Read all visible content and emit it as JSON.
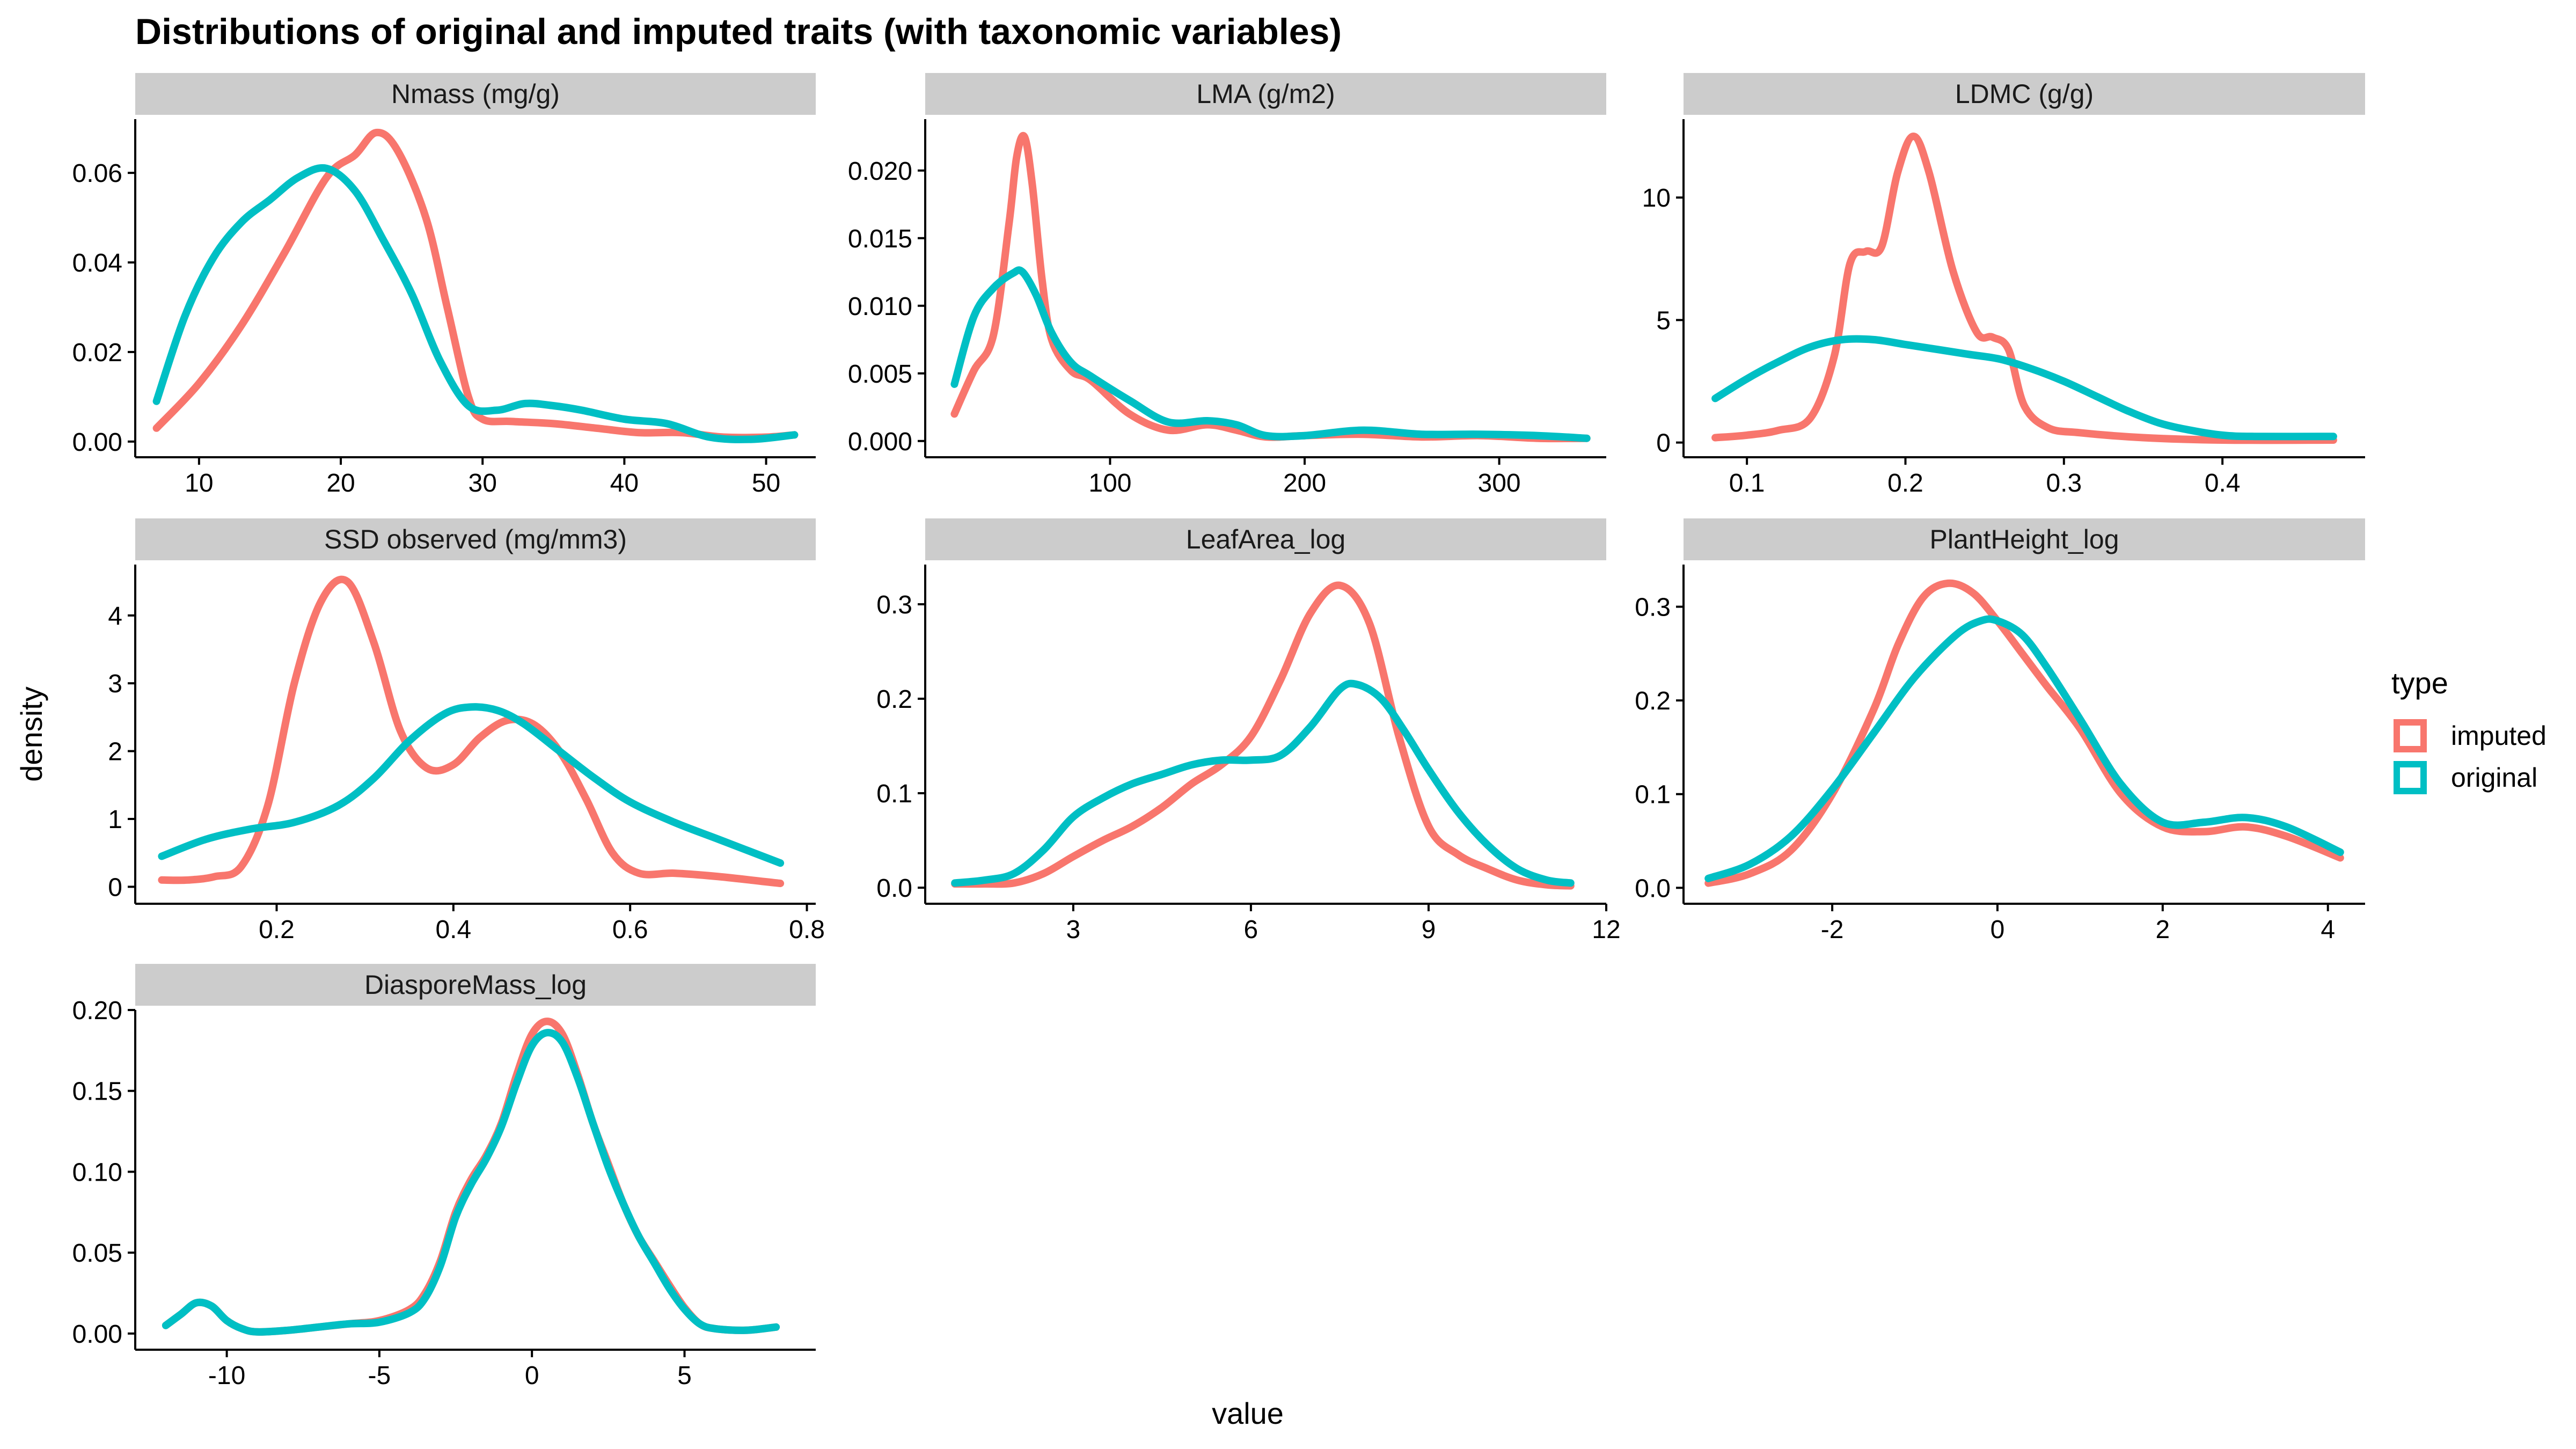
{
  "chart_data": {
    "type": "line",
    "title": "Distributions of original and imputed traits (with taxonomic variables)",
    "xlabel": "value",
    "ylabel": "density",
    "legend": {
      "title": "type",
      "placement": "right",
      "items": [
        {
          "name": "imputed",
          "color": "#F8766D"
        },
        {
          "name": "original",
          "color": "#00BFC4"
        }
      ]
    },
    "grid": false,
    "panels": [
      {
        "label": "Nmass (mg/g)",
        "xlim": [
          5.5,
          53.5
        ],
        "ylim": [
          -0.0035,
          0.072
        ],
        "xticks": [
          10,
          20,
          30,
          40,
          50
        ],
        "xtick_labels": [
          "10",
          "20",
          "30",
          "40",
          "50"
        ],
        "yticks": [
          0,
          0.02,
          0.04,
          0.06
        ],
        "ytick_labels": [
          "0.00",
          "0.02",
          "0.04",
          "0.06"
        ],
        "series": [
          {
            "name": "imputed",
            "x": [
              7,
              10,
              13,
              16,
              19,
              21,
              22.5,
              24,
              26,
              27.5,
              29,
              30,
              32,
              35,
              38,
              41,
              44,
              47,
              50,
              52
            ],
            "y": [
              0.003,
              0.013,
              0.026,
              0.042,
              0.059,
              0.064,
              0.069,
              0.065,
              0.05,
              0.03,
              0.01,
              0.005,
              0.0045,
              0.004,
              0.003,
              0.002,
              0.002,
              0.001,
              0.001,
              0.0015
            ]
          },
          {
            "name": "original",
            "x": [
              7,
              9,
              11,
              13,
              15,
              17,
              19,
              21,
              23,
              25,
              27,
              29,
              31,
              33,
              35,
              37,
              40,
              43,
              46,
              49,
              52
            ],
            "y": [
              0.009,
              0.028,
              0.041,
              0.049,
              0.054,
              0.059,
              0.061,
              0.056,
              0.045,
              0.033,
              0.018,
              0.008,
              0.007,
              0.0085,
              0.008,
              0.007,
              0.005,
              0.004,
              0.001,
              0.0005,
              0.0015
            ]
          }
        ]
      },
      {
        "label": "LMA (g/m2)",
        "xlim": [
          5,
          355
        ],
        "ylim": [
          -0.0012,
          0.0238
        ],
        "xticks": [
          100,
          200,
          300
        ],
        "xtick_labels": [
          "100",
          "200",
          "300"
        ],
        "yticks": [
          0,
          0.005,
          0.01,
          0.015,
          0.02
        ],
        "ytick_labels": [
          "0.000",
          "0.005",
          "0.010",
          "0.015",
          "0.020"
        ],
        "series": [
          {
            "name": "imputed",
            "x": [
              20,
              30,
              40,
              48,
              52,
              56,
              60,
              65,
              70,
              80,
              90,
              110,
              130,
              150,
              165,
              180,
              200,
              230,
              260,
              290,
              320,
              345
            ],
            "y": [
              0.002,
              0.0052,
              0.0078,
              0.016,
              0.021,
              0.0225,
              0.019,
              0.012,
              0.0075,
              0.0052,
              0.0045,
              0.002,
              0.0008,
              0.0012,
              0.0008,
              0.0003,
              0.0004,
              0.0005,
              0.0003,
              0.0004,
              0.0002,
              0.0002
            ]
          },
          {
            "name": "original",
            "x": [
              20,
              30,
              40,
              50,
              55,
              62,
              70,
              80,
              90,
              110,
              130,
              150,
              165,
              180,
              200,
              230,
              260,
              290,
              320,
              345
            ],
            "y": [
              0.0042,
              0.0092,
              0.0113,
              0.0124,
              0.0125,
              0.0108,
              0.008,
              0.0058,
              0.0048,
              0.003,
              0.0014,
              0.0015,
              0.0012,
              0.0004,
              0.0004,
              0.0008,
              0.0005,
              0.0005,
              0.0004,
              0.0002
            ]
          }
        ]
      },
      {
        "label": "LDMC (g/g)",
        "xlim": [
          0.06,
          0.49
        ],
        "ylim": [
          -0.6,
          13.2
        ],
        "xticks": [
          0.1,
          0.2,
          0.3,
          0.4
        ],
        "xtick_labels": [
          "0.1",
          "0.2",
          "0.3",
          "0.4"
        ],
        "yticks": [
          0,
          5,
          10
        ],
        "ytick_labels": [
          "0",
          "5",
          "10"
        ],
        "series": [
          {
            "name": "imputed",
            "x": [
              0.08,
              0.1,
              0.12,
              0.14,
              0.155,
              0.165,
              0.175,
              0.185,
              0.195,
              0.205,
              0.215,
              0.23,
              0.245,
              0.255,
              0.265,
              0.275,
              0.29,
              0.31,
              0.35,
              0.4,
              0.47
            ],
            "y": [
              0.2,
              0.3,
              0.5,
              1.0,
              3.5,
              7.3,
              7.8,
              8.0,
              11.0,
              12.5,
              11.0,
              7.0,
              4.5,
              4.3,
              3.8,
              1.5,
              0.6,
              0.4,
              0.2,
              0.1,
              0.1
            ]
          },
          {
            "name": "original",
            "x": [
              0.08,
              0.1,
              0.12,
              0.14,
              0.16,
              0.18,
              0.2,
              0.22,
              0.24,
              0.26,
              0.28,
              0.3,
              0.32,
              0.34,
              0.36,
              0.38,
              0.4,
              0.42,
              0.47
            ],
            "y": [
              1.8,
              2.6,
              3.3,
              3.9,
              4.2,
              4.2,
              4.0,
              3.8,
              3.6,
              3.4,
              3.0,
              2.5,
              1.9,
              1.3,
              0.8,
              0.5,
              0.3,
              0.25,
              0.25
            ]
          }
        ]
      },
      {
        "label": "SSD observed (mg/mm3)",
        "xlim": [
          0.04,
          0.81
        ],
        "ylim": [
          -0.25,
          4.75
        ],
        "xticks": [
          0.2,
          0.4,
          0.6,
          0.8
        ],
        "xtick_labels": [
          "0.2",
          "0.4",
          "0.6",
          "0.8"
        ],
        "yticks": [
          0,
          1,
          2,
          3,
          4
        ],
        "ytick_labels": [
          "0",
          "1",
          "2",
          "3",
          "4"
        ],
        "series": [
          {
            "name": "imputed",
            "x": [
              0.07,
              0.1,
              0.13,
              0.16,
              0.19,
              0.22,
              0.25,
              0.28,
              0.31,
              0.34,
              0.37,
              0.4,
              0.43,
              0.46,
              0.49,
              0.52,
              0.55,
              0.58,
              0.61,
              0.65,
              0.7,
              0.77
            ],
            "y": [
              0.1,
              0.1,
              0.15,
              0.3,
              1.2,
              3.0,
              4.2,
              4.5,
              3.6,
              2.3,
              1.75,
              1.8,
              2.2,
              2.45,
              2.4,
              2.0,
              1.3,
              0.5,
              0.2,
              0.2,
              0.15,
              0.05
            ]
          },
          {
            "name": "original",
            "x": [
              0.07,
              0.12,
              0.17,
              0.22,
              0.27,
              0.31,
              0.35,
              0.39,
              0.42,
              0.45,
              0.48,
              0.52,
              0.56,
              0.6,
              0.65,
              0.7,
              0.77
            ],
            "y": [
              0.45,
              0.7,
              0.85,
              0.95,
              1.2,
              1.6,
              2.15,
              2.55,
              2.65,
              2.6,
              2.4,
              2.0,
              1.6,
              1.25,
              0.95,
              0.7,
              0.35
            ]
          }
        ]
      },
      {
        "label": "LeafArea_log",
        "xlim": [
          0.5,
          12.0
        ],
        "ylim": [
          -0.017,
          0.342
        ],
        "xticks": [
          3,
          6,
          9,
          12
        ],
        "xtick_labels": [
          "3",
          "6",
          "9",
          "12"
        ],
        "yticks": [
          0,
          0.1,
          0.2,
          0.3
        ],
        "ytick_labels": [
          "0.0",
          "0.1",
          "0.2",
          "0.3"
        ],
        "series": [
          {
            "name": "imputed",
            "x": [
              1.0,
              1.5,
              2.0,
              2.5,
              3.0,
              3.5,
              4.0,
              4.5,
              5.0,
              5.5,
              6.0,
              6.5,
              7.0,
              7.5,
              8.0,
              8.5,
              9.0,
              9.5,
              10.0,
              10.5,
              11.0,
              11.4
            ],
            "y": [
              0.004,
              0.004,
              0.005,
              0.015,
              0.033,
              0.05,
              0.065,
              0.085,
              0.11,
              0.13,
              0.16,
              0.22,
              0.29,
              0.32,
              0.28,
              0.16,
              0.065,
              0.035,
              0.02,
              0.008,
              0.003,
              0.002
            ]
          },
          {
            "name": "original",
            "x": [
              1.0,
              1.5,
              2.0,
              2.5,
              3.0,
              3.5,
              4.0,
              4.5,
              5.0,
              5.5,
              6.0,
              6.5,
              7.0,
              7.5,
              7.8,
              8.2,
              8.6,
              9.0,
              9.5,
              10.0,
              10.5,
              11.0,
              11.4
            ],
            "y": [
              0.005,
              0.008,
              0.015,
              0.04,
              0.075,
              0.095,
              0.11,
              0.12,
              0.13,
              0.135,
              0.135,
              0.14,
              0.17,
              0.21,
              0.215,
              0.2,
              0.165,
              0.125,
              0.08,
              0.045,
              0.02,
              0.008,
              0.005
            ]
          }
        ]
      },
      {
        "label": "PlantHeight_log",
        "xlim": [
          -3.8,
          4.45
        ],
        "ylim": [
          -0.017,
          0.345
        ],
        "xticks": [
          -2,
          0,
          2,
          4
        ],
        "xtick_labels": [
          "-2",
          "0",
          "2",
          "4"
        ],
        "yticks": [
          0,
          0.1,
          0.2,
          0.3
        ],
        "ytick_labels": [
          "0.0",
          "0.1",
          "0.2",
          "0.3"
        ],
        "series": [
          {
            "name": "imputed",
            "x": [
              -3.5,
              -3.0,
              -2.5,
              -2.0,
              -1.5,
              -1.2,
              -0.9,
              -0.6,
              -0.3,
              0.0,
              0.3,
              0.6,
              1.0,
              1.5,
              2.0,
              2.5,
              3.0,
              3.5,
              4.15
            ],
            "y": [
              0.005,
              0.015,
              0.04,
              0.1,
              0.19,
              0.26,
              0.31,
              0.325,
              0.315,
              0.285,
              0.25,
              0.215,
              0.17,
              0.1,
              0.065,
              0.06,
              0.065,
              0.055,
              0.032
            ]
          },
          {
            "name": "original",
            "x": [
              -3.5,
              -3.0,
              -2.5,
              -2.0,
              -1.5,
              -1.0,
              -0.5,
              -0.2,
              0.0,
              0.3,
              0.6,
              1.0,
              1.5,
              2.0,
              2.5,
              3.0,
              3.5,
              4.15
            ],
            "y": [
              0.01,
              0.025,
              0.055,
              0.105,
              0.165,
              0.225,
              0.27,
              0.285,
              0.285,
              0.27,
              0.235,
              0.18,
              0.11,
              0.07,
              0.07,
              0.075,
              0.065,
              0.038
            ]
          }
        ]
      },
      {
        "label": "DiasporeMass_log",
        "xlim": [
          -13.0,
          9.3
        ],
        "ylim": [
          -0.01,
          0.2
        ],
        "xticks": [
          -10,
          -5,
          0,
          5
        ],
        "xtick_labels": [
          "-10",
          "-5",
          "0",
          "5"
        ],
        "yticks": [
          0,
          0.05,
          0.1,
          0.15,
          0.2
        ],
        "ytick_labels": [
          "0.00",
          "0.05",
          "0.10",
          "0.15",
          "0.20"
        ],
        "series": [
          {
            "name": "imputed",
            "x": [
              -12,
              -11.5,
              -11,
              -10.5,
              -10,
              -9.5,
              -9,
              -8,
              -7,
              -6,
              -5,
              -4,
              -3.5,
              -3,
              -2.5,
              -2,
              -1.5,
              -1,
              -0.5,
              0,
              0.5,
              1,
              1.5,
              2,
              2.5,
              3,
              3.5,
              4,
              4.5,
              5,
              5.5,
              6,
              7,
              8
            ],
            "y": [
              0.005,
              0.012,
              0.019,
              0.017,
              0.008,
              0.003,
              0.001,
              0.002,
              0.004,
              0.006,
              0.008,
              0.015,
              0.025,
              0.045,
              0.075,
              0.095,
              0.11,
              0.13,
              0.16,
              0.185,
              0.193,
              0.185,
              0.16,
              0.13,
              0.105,
              0.08,
              0.06,
              0.045,
              0.03,
              0.016,
              0.006,
              0.003,
              0.002,
              0.004
            ]
          },
          {
            "name": "original",
            "x": [
              -12,
              -11.5,
              -11,
              -10.5,
              -10,
              -9.5,
              -9,
              -8,
              -7,
              -6,
              -5,
              -4,
              -3.5,
              -3,
              -2.5,
              -2,
              -1.5,
              -1,
              -0.5,
              0,
              0.5,
              1,
              1.5,
              2,
              2.5,
              3,
              3.5,
              4,
              4.5,
              5,
              5.5,
              6,
              7,
              8
            ],
            "y": [
              0.005,
              0.012,
              0.019,
              0.017,
              0.008,
              0.003,
              0.001,
              0.002,
              0.004,
              0.006,
              0.007,
              0.013,
              0.022,
              0.042,
              0.072,
              0.092,
              0.108,
              0.128,
              0.155,
              0.178,
              0.186,
              0.18,
              0.158,
              0.13,
              0.103,
              0.08,
              0.06,
              0.044,
              0.028,
              0.015,
              0.006,
              0.003,
              0.002,
              0.004
            ]
          }
        ]
      }
    ]
  }
}
